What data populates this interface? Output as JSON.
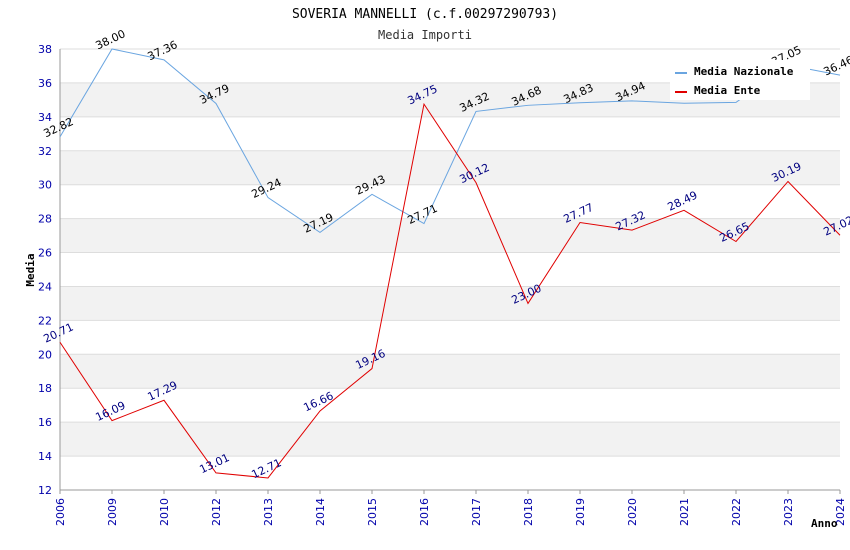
{
  "chart_data": {
    "type": "line",
    "title": "SOVERIA MANNELLI (c.f.00297290793)",
    "subtitle": "Media Importi",
    "xlabel": "Anno",
    "ylabel": "Media",
    "ylim": [
      12,
      38
    ],
    "ystep": 2,
    "categories": [
      "2006",
      "2009",
      "2010",
      "2012",
      "2013",
      "2014",
      "2015",
      "2016",
      "2017",
      "2018",
      "2019",
      "2020",
      "2021",
      "2022",
      "2023",
      "2024"
    ],
    "series": [
      {
        "name": "Media Nazionale",
        "color": "#6aa5e0",
        "values": [
          32.82,
          38.0,
          37.36,
          34.79,
          29.24,
          27.19,
          29.43,
          27.71,
          34.32,
          34.68,
          34.83,
          34.94,
          null,
          null,
          37.05,
          36.46
        ],
        "drawn_values": [
          32.82,
          38.0,
          37.36,
          34.79,
          29.24,
          27.19,
          29.43,
          27.71,
          34.32,
          34.68,
          34.83,
          34.94,
          34.8,
          34.85,
          37.05,
          36.46
        ],
        "labels": [
          "32.82",
          "38.00",
          "37.36",
          "34.79",
          "29.24",
          "27.19",
          "29.43",
          "27.71",
          "34.32",
          "34.68",
          "34.83",
          "34.94",
          "",
          "",
          "37.05",
          "36.46"
        ]
      },
      {
        "name": "Media Ente",
        "color": "#e00000",
        "values": [
          20.71,
          16.09,
          17.29,
          13.01,
          12.71,
          16.66,
          19.16,
          34.75,
          30.12,
          23.0,
          27.77,
          27.32,
          28.49,
          26.65,
          30.19,
          27.02
        ],
        "labels": [
          "20.71",
          "16.09",
          "17.29",
          "13.01",
          "12.71",
          "16.66",
          "19.16",
          "34.75",
          "30.12",
          "23.00",
          "27.77",
          "27.32",
          "28.49",
          "26.65",
          "30.19",
          "27.02"
        ]
      }
    ],
    "legend": {
      "position": "top-right"
    },
    "grid": true,
    "band_color": "#f2f2f2",
    "grid_color": "#dddddd"
  }
}
